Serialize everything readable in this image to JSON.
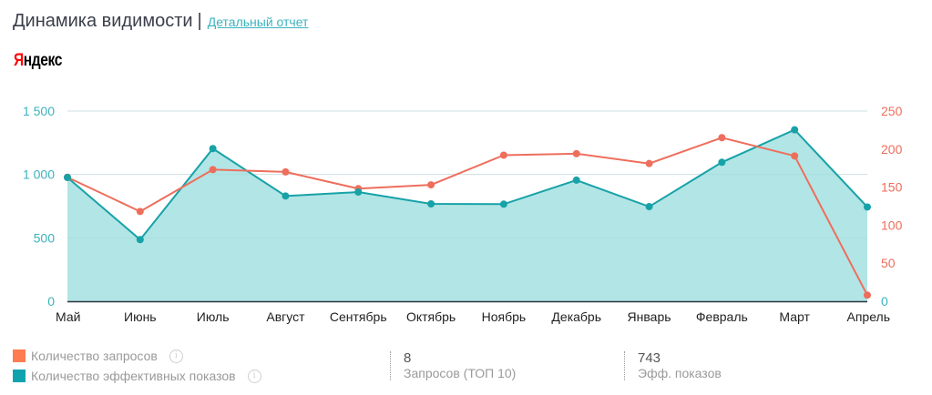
{
  "header": {
    "title": "Динамика видимости",
    "separator": "|",
    "report_link": "Детальный отчет"
  },
  "engine": {
    "first_letter": "Я",
    "rest": "ндекс"
  },
  "colors": {
    "queries": "#ee6e5c",
    "impressions_line": "#17a2a8",
    "impressions_fill": "#b2e5e5",
    "legend_queries": "#ff7b52",
    "legend_impressions": "#0fa3ad",
    "left_axis_text": "#3cb3bd",
    "right_axis_text": "#ee6e5c",
    "grid": "#e6e6e6",
    "baseline": "#2b3440"
  },
  "legend": {
    "items": [
      {
        "label": "Количество запросов",
        "color": "#ff7b52"
      },
      {
        "label": "Количество эффективных показов",
        "color": "#0fa3ad"
      }
    ]
  },
  "stats": [
    {
      "value": "8",
      "label": "Запросов (ТОП 10)"
    },
    {
      "value": "743",
      "label": "Эфф. показов"
    }
  ],
  "chart_data": {
    "type": "line",
    "title": "Динамика видимости",
    "categories": [
      "Май",
      "Июнь",
      "Июль",
      "Август",
      "Сентябрь",
      "Октябрь",
      "Ноябрь",
      "Декабрь",
      "Январь",
      "Февраль",
      "Март",
      "Апрель"
    ],
    "series": [
      {
        "name": "Количество эффективных показов",
        "axis": "left",
        "style": "area",
        "values": [
          976,
          486,
          1204,
          830,
          861,
          768,
          766,
          955,
          746,
          1096,
          1352,
          743
        ]
      },
      {
        "name": "Количество запросов",
        "axis": "right",
        "style": "line",
        "values": [
          163,
          118,
          173,
          170,
          148,
          153,
          192,
          194,
          181,
          215,
          191,
          8
        ]
      }
    ],
    "left_axis": {
      "ylim": [
        0,
        1500
      ],
      "ticks": [
        0,
        500,
        1000,
        1500
      ],
      "tick_labels": [
        "0",
        "500",
        "1 000",
        "1 500"
      ]
    },
    "right_axis": {
      "ylim": [
        0,
        250
      ],
      "ticks": [
        0,
        50,
        100,
        150,
        200,
        250
      ],
      "tick_labels": [
        "0",
        "50",
        "100",
        "150",
        "200",
        "250"
      ]
    },
    "grid": true,
    "legend_position": "bottom-left",
    "xlabel": "",
    "ylabel": ""
  }
}
